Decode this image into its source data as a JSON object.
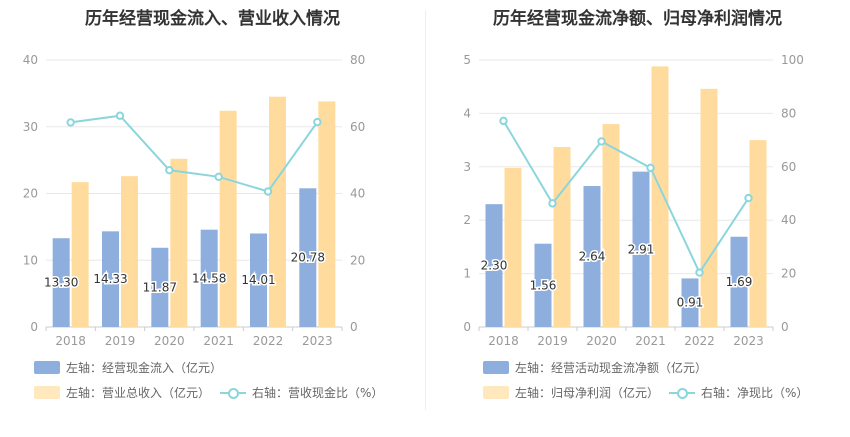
{
  "chart_data": [
    {
      "type": "bar",
      "title": "历年经营现金流入、营业收入情况",
      "categories": [
        "2018",
        "2019",
        "2020",
        "2021",
        "2022",
        "2023"
      ],
      "left_axis": {
        "min": 0,
        "max": 40,
        "ticks": [
          "0",
          "10",
          "20",
          "30",
          "40"
        ]
      },
      "right_axis": {
        "min": 0,
        "max": 80,
        "ticks": [
          "0",
          "20",
          "40",
          "60",
          "80"
        ]
      },
      "series": [
        {
          "name": "左轴：经营现金流入（亿元）",
          "kind": "bar",
          "axis": "left",
          "color": "#8eaedd",
          "values": [
            13.3,
            14.33,
            11.87,
            14.58,
            14.01,
            20.78
          ],
          "labels": [
            "13.30",
            "14.33",
            "11.87",
            "14.58",
            "14.01",
            "20.78"
          ]
        },
        {
          "name": "左轴：营业总收入（亿元）",
          "kind": "bar",
          "axis": "left",
          "color": "#ffdc9e",
          "values": [
            21.7,
            22.6,
            25.2,
            32.4,
            34.5,
            33.8
          ]
        },
        {
          "name": "右轴：营收现金比（%）",
          "kind": "line",
          "axis": "right",
          "color": "#8bd6dc",
          "values": [
            61.3,
            63.3,
            47.0,
            45.0,
            40.6,
            61.4
          ]
        }
      ]
    },
    {
      "type": "bar",
      "title": "历年经营现金流净额、归母净利润情况",
      "categories": [
        "2018",
        "2019",
        "2020",
        "2021",
        "2022",
        "2023"
      ],
      "left_axis": {
        "min": 0,
        "max": 5,
        "ticks": [
          "0",
          "1",
          "2",
          "3",
          "4",
          "5"
        ]
      },
      "right_axis": {
        "min": 0,
        "max": 100,
        "ticks": [
          "0",
          "20",
          "40",
          "60",
          "80",
          "100"
        ]
      },
      "series": [
        {
          "name": "左轴：经营活动现金流净额（亿元）",
          "kind": "bar",
          "axis": "left",
          "color": "#8eaedd",
          "values": [
            2.3,
            1.56,
            2.64,
            2.91,
            0.91,
            1.69
          ],
          "labels": [
            "2.30",
            "1.56",
            "2.64",
            "2.91",
            "0.91",
            "1.69"
          ]
        },
        {
          "name": "左轴：归母净利润（亿元）",
          "kind": "bar",
          "axis": "left",
          "color": "#ffdc9e",
          "values": [
            2.98,
            3.37,
            3.8,
            4.88,
            4.46,
            3.5
          ]
        },
        {
          "name": "右轴：净现比（%）",
          "kind": "line",
          "axis": "right",
          "color": "#8bd6dc",
          "values": [
            77.2,
            46.3,
            69.5,
            59.6,
            20.4,
            48.3
          ]
        }
      ]
    }
  ]
}
